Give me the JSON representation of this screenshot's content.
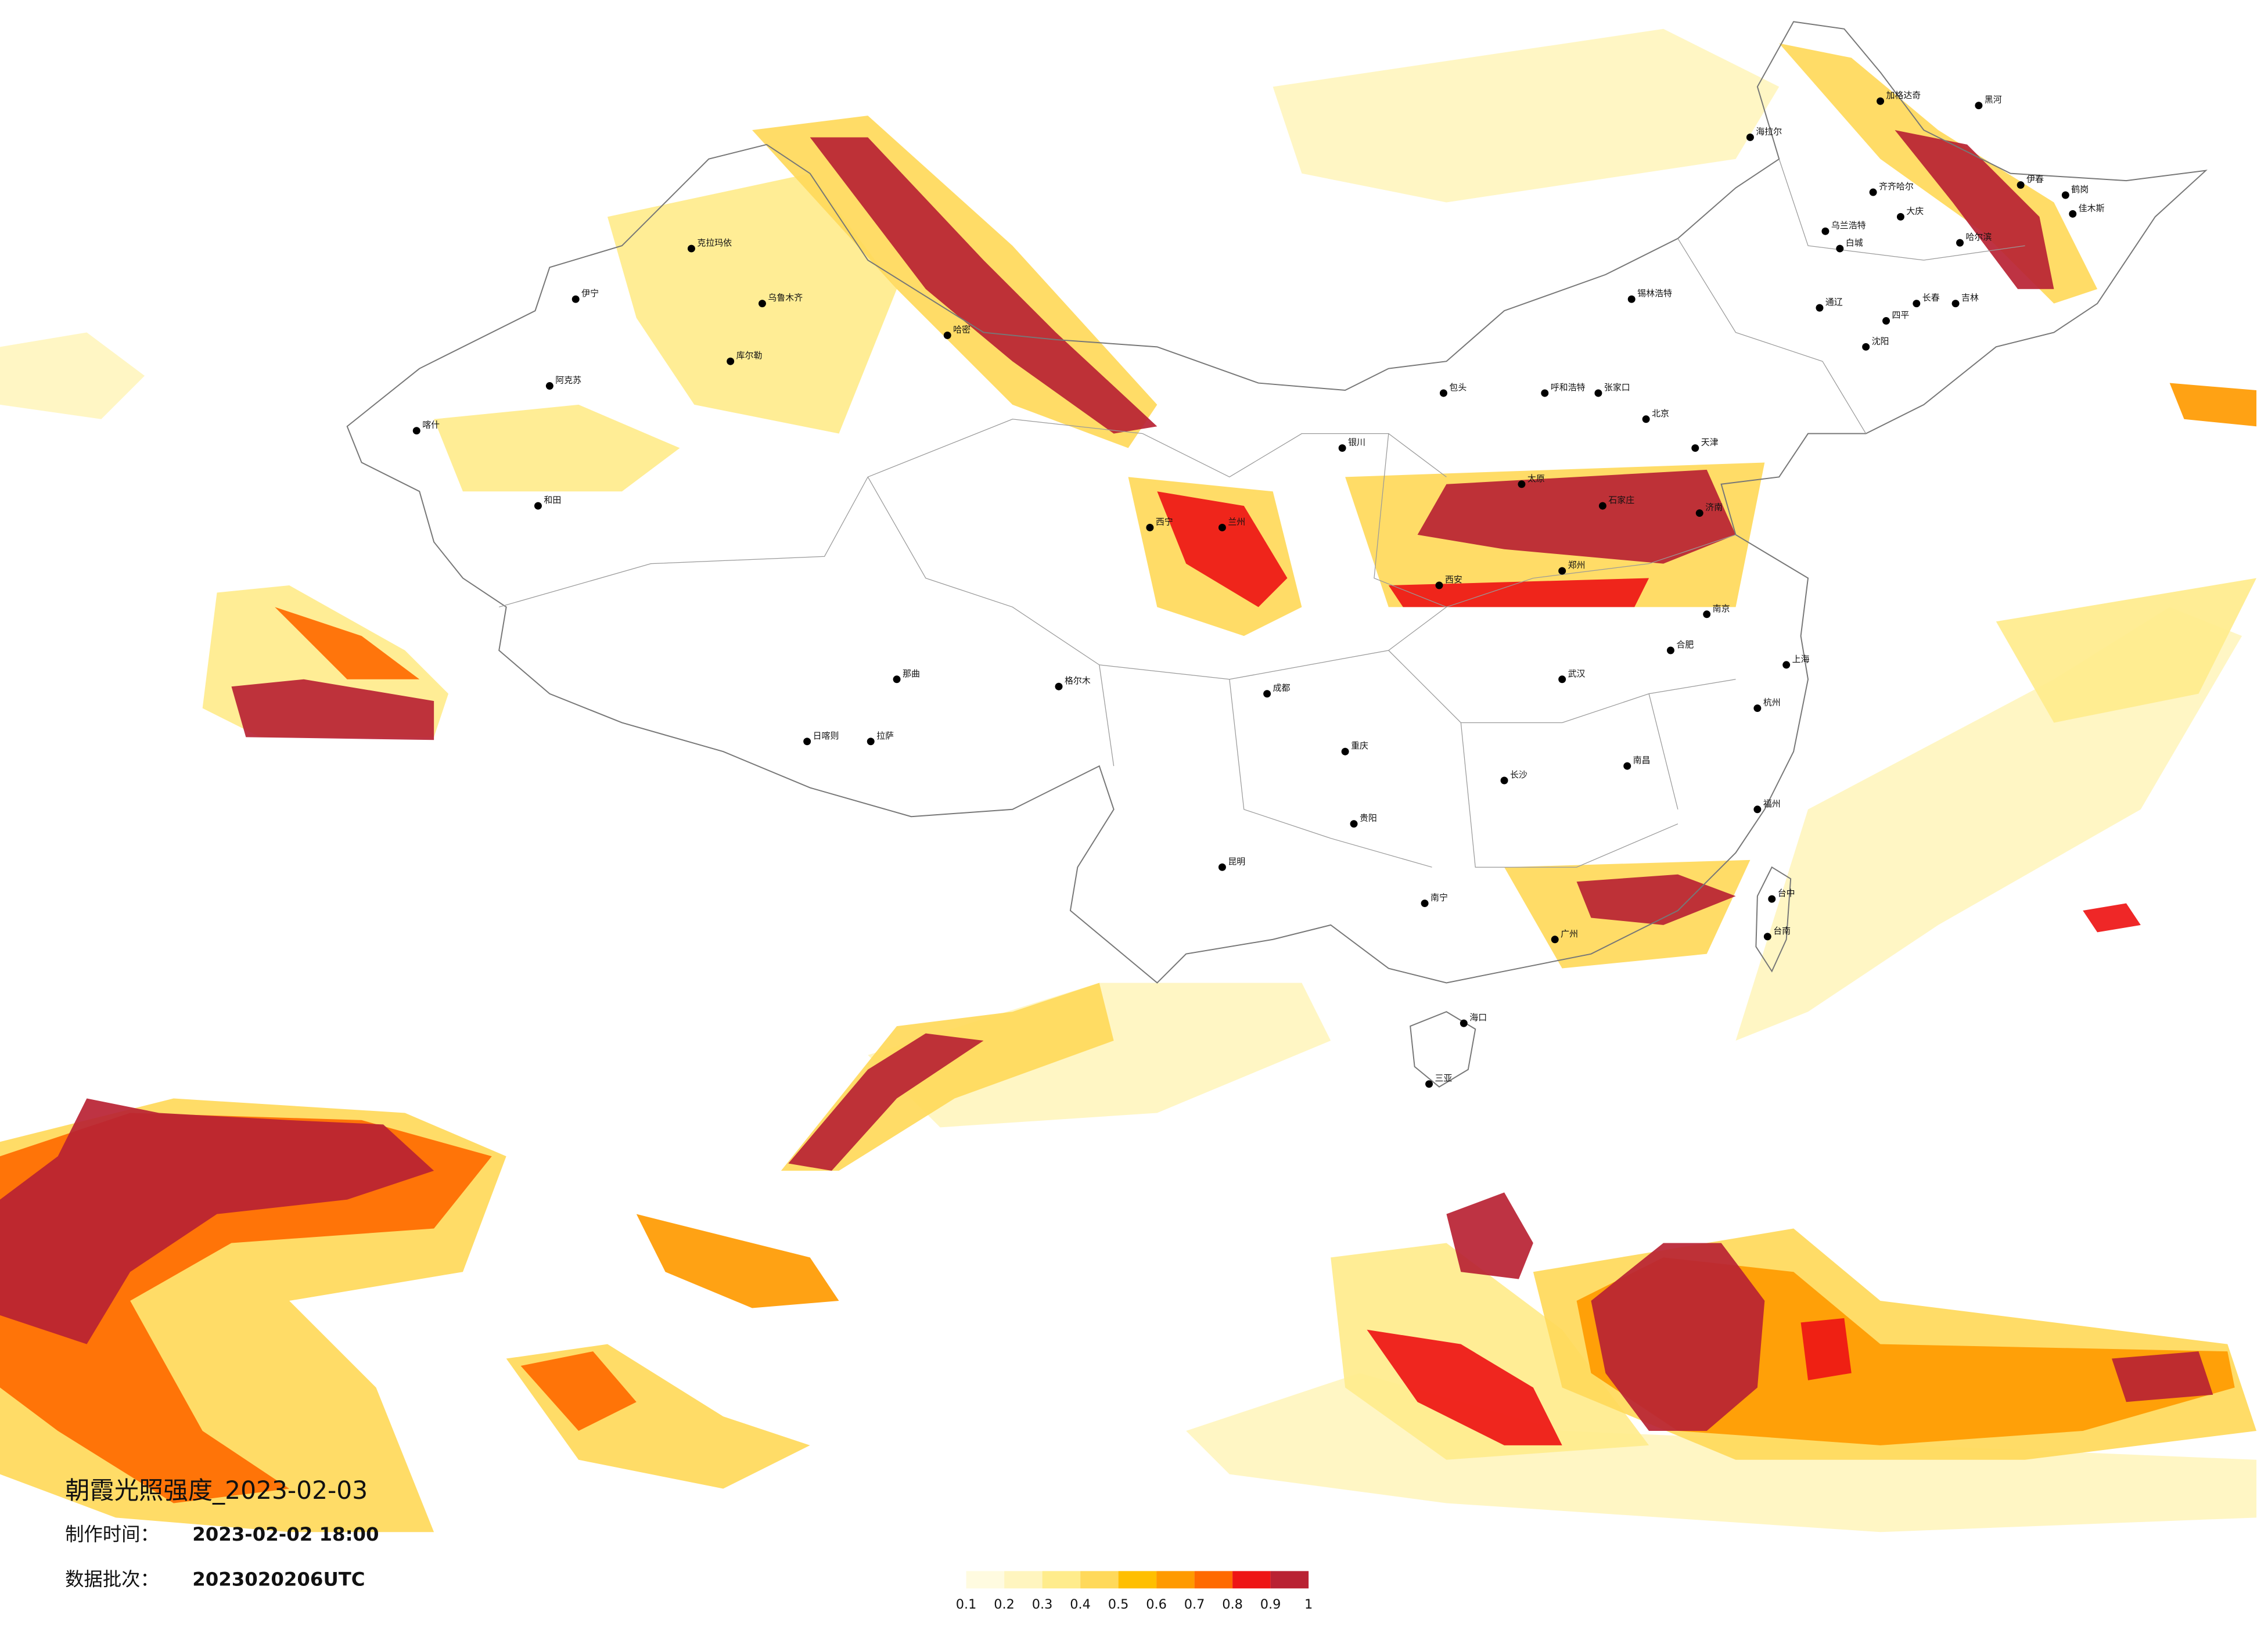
{
  "header": {
    "title": "朝霞光照强度_2023-02-03",
    "made_label": "制作时间：",
    "made_time": "2023-02-02 18:00",
    "batch_label": "数据批次：",
    "batch": "2023020206UTC"
  },
  "legend": {
    "colors": [
      "#fffbe0",
      "#fff5bf",
      "#ffec8c",
      "#ffd95a",
      "#ffbf00",
      "#ff9a00",
      "#ff6a00",
      "#ee1515",
      "#b92233"
    ],
    "ticks": [
      0.1,
      0.2,
      0.3,
      0.4,
      0.5,
      0.6,
      0.7,
      0.8,
      0.9,
      1
    ]
  },
  "cities": [
    "海拉尔",
    "加格达奇",
    "黑河",
    "齐齐哈尔",
    "大庆",
    "伊春",
    "鹤岗",
    "佳木斯",
    "哈尔滨",
    "乌兰浩特",
    "白城",
    "长春",
    "吉林",
    "通辽",
    "锡林浩特",
    "四平",
    "沈阳",
    "呼和浩特",
    "包头",
    "张家口",
    "北京",
    "天津",
    "石家庄",
    "太原",
    "济南",
    "郑州",
    "西安",
    "银川",
    "兰州",
    "西宁",
    "乌鲁木齐",
    "克拉玛依",
    "伊宁",
    "阿克苏",
    "喀什",
    "和田",
    "库尔勒",
    "哈密",
    "格尔木",
    "拉萨",
    "日喀则",
    "那曲",
    "成都",
    "重庆",
    "贵阳",
    "昆明",
    "南宁",
    "广州",
    "长沙",
    "武汉",
    "南昌",
    "合肥",
    "南京",
    "上海",
    "杭州",
    "福州",
    "台中",
    "台南",
    "海口",
    "三亚"
  ]
}
